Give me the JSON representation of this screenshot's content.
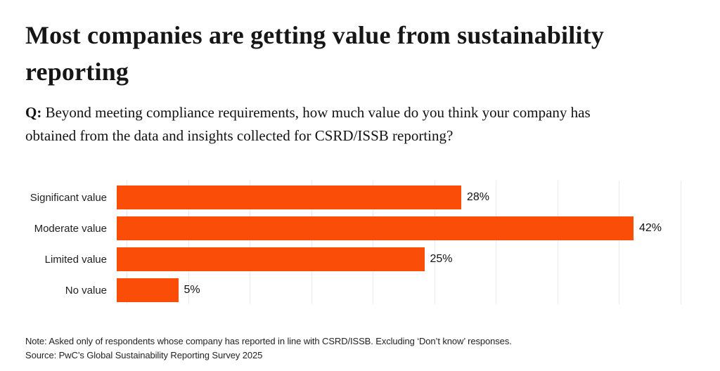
{
  "header": {
    "title_line1": "Most companies are getting value from sustainability",
    "title_line2": "reporting"
  },
  "question": {
    "q_label": "Q:",
    "line1": "Beyond meeting compliance requirements, how much value do you think your company has",
    "line2": "obtained from the data and insights collected for CSRD/ISSB reporting?"
  },
  "chart_data": {
    "type": "bar",
    "orientation": "horizontal",
    "title": "Most companies are getting value from sustainability reporting",
    "categories": [
      "Significant value",
      "Moderate value",
      "Limited value",
      "No value"
    ],
    "values": [
      28,
      42,
      25,
      5
    ],
    "value_labels": [
      "28%",
      "42%",
      "25%",
      "5%"
    ],
    "xlim": [
      0,
      45
    ],
    "gridline_step_pct": 5,
    "grid": "vertical-light",
    "bar_color": "#FA4D07",
    "gridline_color": "#EAEAEA"
  },
  "footnotes": {
    "note": "Note: Asked only of respondents whose company has reported in line with CSRD/ISSB. Excluding ‘Don’t know’ responses.",
    "source": "Source: PwC’s Global Sustainability Reporting Survey 2025"
  }
}
